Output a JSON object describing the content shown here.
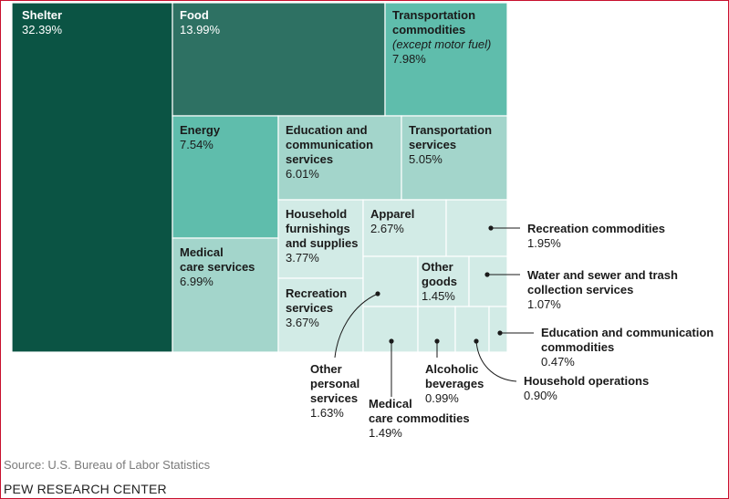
{
  "chart_data": {
    "type": "treemap",
    "unit": "%",
    "items": [
      {
        "name": "Shelter",
        "value": 32.39,
        "value_label": "32.39%",
        "color": "#0b5444",
        "text_color": "#ffffff"
      },
      {
        "name": "Food",
        "value": 13.99,
        "value_label": "13.99%",
        "color": "#2e7163",
        "text_color": "#ffffff"
      },
      {
        "name": "Transportation commodities",
        "note": "(except motor fuel)",
        "value": 7.98,
        "value_label": "7.98%",
        "color": "#5fbdac",
        "text_color": "#1a1a1a"
      },
      {
        "name": "Energy",
        "value": 7.54,
        "value_label": "7.54%",
        "color": "#5fbdac",
        "text_color": "#1a1a1a"
      },
      {
        "name": "Education and communication services",
        "value": 6.01,
        "value_label": "6.01%",
        "color": "#a3d5cb",
        "text_color": "#1a1a1a"
      },
      {
        "name": "Transportation services",
        "value": 5.05,
        "value_label": "5.05%",
        "color": "#a3d5cb",
        "text_color": "#1a1a1a"
      },
      {
        "name": "Medical care services",
        "value": 6.99,
        "value_label": "6.99%",
        "color": "#a3d5cb",
        "text_color": "#1a1a1a"
      },
      {
        "name": "Household furnishings and supplies",
        "value": 3.77,
        "value_label": "3.77%",
        "color": "#d2ebe6",
        "text_color": "#1a1a1a"
      },
      {
        "name": "Apparel",
        "value": 2.67,
        "value_label": "2.67%",
        "color": "#d2ebe6",
        "text_color": "#1a1a1a"
      },
      {
        "name": "Recreation commodities",
        "value": 1.95,
        "value_label": "1.95%",
        "color": "#d2ebe6",
        "text_color": "#1a1a1a"
      },
      {
        "name": "Recreation services",
        "value": 3.67,
        "value_label": "3.67%",
        "color": "#d2ebe6",
        "text_color": "#1a1a1a"
      },
      {
        "name": "Other personal services",
        "value": 1.63,
        "value_label": "1.63%",
        "color": "#d2ebe6",
        "text_color": "#1a1a1a"
      },
      {
        "name": "Other goods",
        "value": 1.45,
        "value_label": "1.45%",
        "color": "#d2ebe6",
        "text_color": "#1a1a1a"
      },
      {
        "name": "Water and sewer and trash collection services",
        "value": 1.07,
        "value_label": "1.07%",
        "color": "#d2ebe6",
        "text_color": "#1a1a1a"
      },
      {
        "name": "Medical care commodities",
        "value": 1.49,
        "value_label": "1.49%",
        "color": "#d2ebe6",
        "text_color": "#1a1a1a"
      },
      {
        "name": "Alcoholic beverages",
        "value": 0.99,
        "value_label": "0.99%",
        "color": "#d2ebe6",
        "text_color": "#1a1a1a"
      },
      {
        "name": "Household operations",
        "value": 0.9,
        "value_label": "0.90%",
        "color": "#d2ebe6",
        "text_color": "#1a1a1a"
      },
      {
        "name": "Education and communication commodities",
        "value": 0.47,
        "value_label": "0.47%",
        "color": "#d2ebe6",
        "text_color": "#1a1a1a"
      }
    ]
  },
  "source": "Source: U.S. Bureau of Labor Statistics",
  "brand": "PEW RESEARCH CENTER"
}
